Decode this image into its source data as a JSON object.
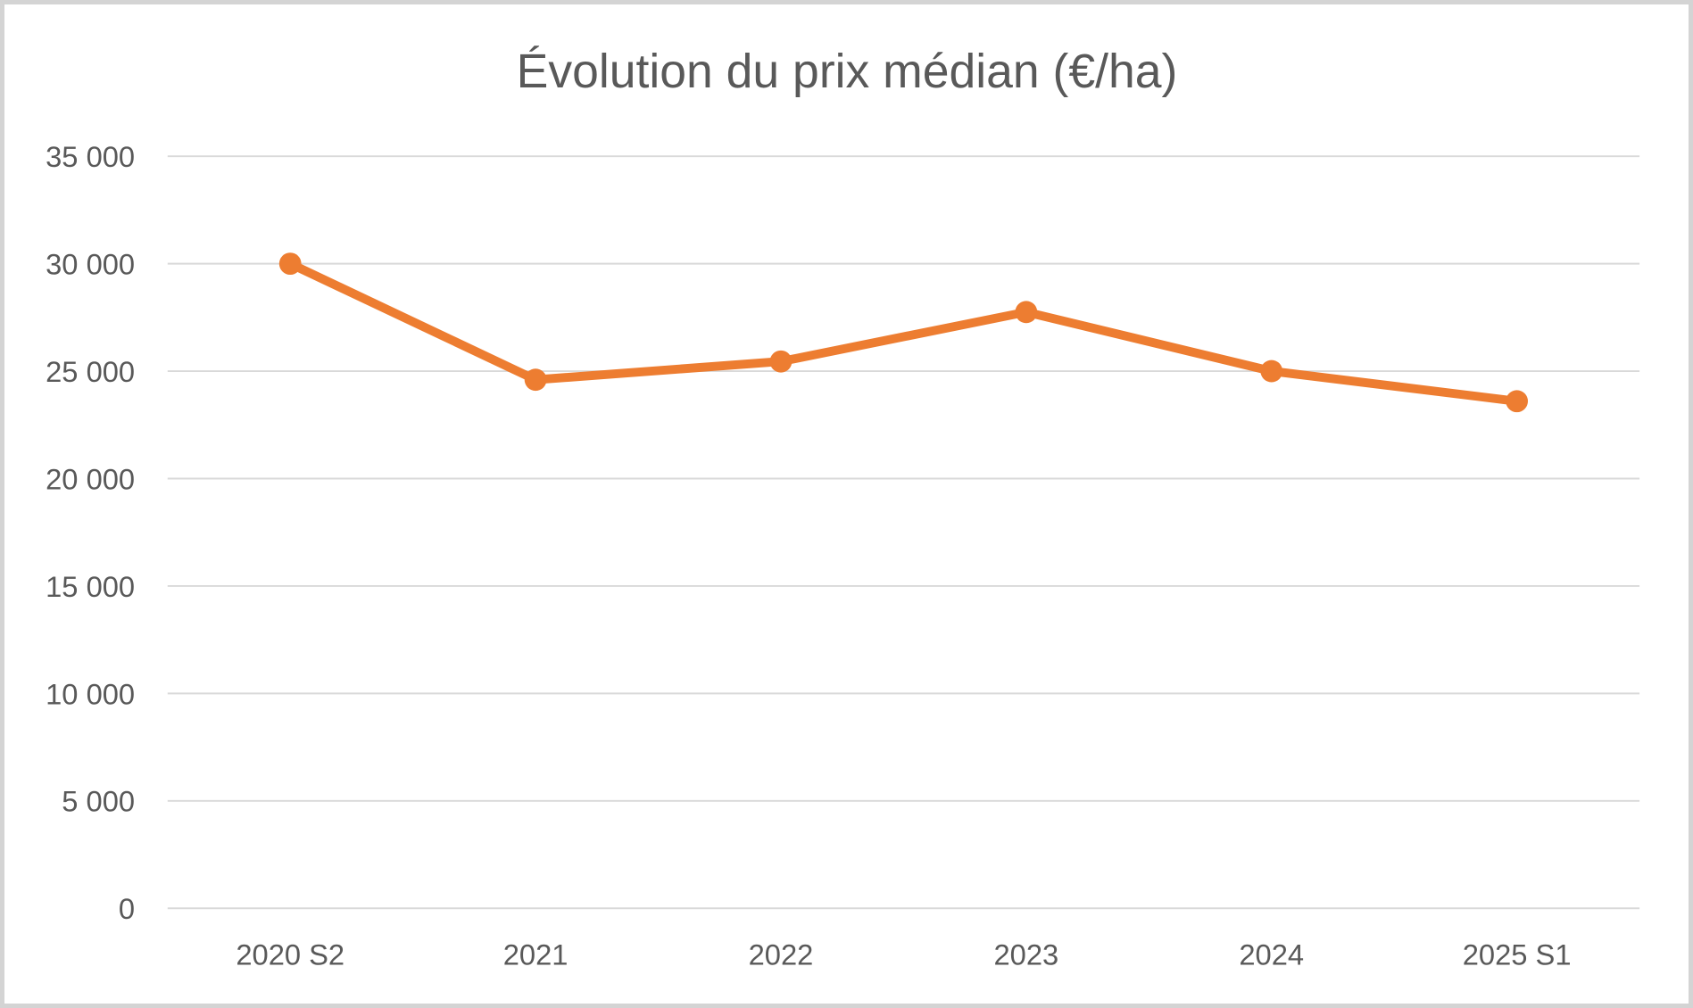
{
  "chart_data": {
    "type": "line",
    "title": "Évolution du prix médian (€/ha)",
    "categories": [
      "2020 S2",
      "2021",
      "2022",
      "2023",
      "2024",
      "2025 S1"
    ],
    "values": [
      30000,
      24600,
      25450,
      27750,
      25000,
      23600
    ],
    "xlabel": "",
    "ylabel": "",
    "ylim": [
      0,
      35000
    ],
    "y_ticks": [
      {
        "value": 0,
        "label": "0"
      },
      {
        "value": 5000,
        "label": "5 000"
      },
      {
        "value": 10000,
        "label": "10 000"
      },
      {
        "value": 15000,
        "label": "15 000"
      },
      {
        "value": 20000,
        "label": "20 000"
      },
      {
        "value": 25000,
        "label": "25 000"
      },
      {
        "value": 30000,
        "label": "30 000"
      },
      {
        "value": 35000,
        "label": "35 000"
      }
    ],
    "number_format": "space-thousands",
    "grid": "horizontal",
    "legend": "none",
    "marker": "circle"
  },
  "colors": {
    "series": "#ED7D31",
    "gridline": "#D9D9D9",
    "text": "#595959",
    "background": "#FFFFFF",
    "frame_border": "#D4D4D4"
  }
}
